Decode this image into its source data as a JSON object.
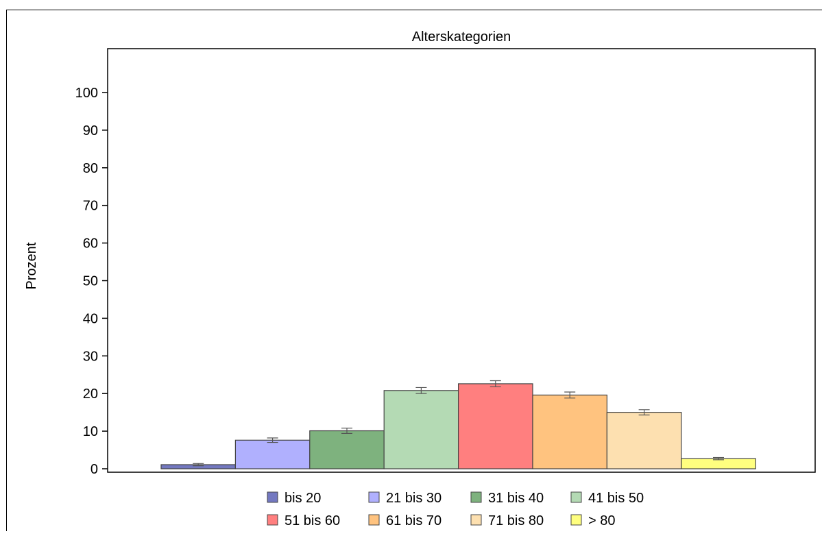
{
  "chart_data": {
    "type": "bar",
    "title": "Alterskategorien",
    "ylabel": "Prozent",
    "xlabel": "",
    "ylim": [
      0,
      110
    ],
    "yticks": [
      0,
      10,
      20,
      30,
      40,
      50,
      60,
      70,
      80,
      90,
      100
    ],
    "grid": false,
    "legend": "bottom",
    "series": [
      {
        "name": "bis 20",
        "value": 1.1,
        "err": 0.3,
        "color": "#7378C0"
      },
      {
        "name": "21 bis 30",
        "value": 7.6,
        "err": 0.6,
        "color": "#B0B0FE"
      },
      {
        "name": "31 bis 40",
        "value": 10.1,
        "err": 0.7,
        "color": "#7EB27E"
      },
      {
        "name": "41 bis 50",
        "value": 20.8,
        "err": 0.8,
        "color": "#B4DAB4"
      },
      {
        "name": "51 bis 60",
        "value": 22.6,
        "err": 0.8,
        "color": "#FF7F7F"
      },
      {
        "name": "61 bis 70",
        "value": 19.6,
        "err": 0.8,
        "color": "#FFC37F"
      },
      {
        "name": "71 bis 80",
        "value": 15.0,
        "err": 0.7,
        "color": "#FDE0B0"
      },
      {
        "name": "> 80",
        "value": 2.7,
        "err": 0.3,
        "color": "#FFFF7F"
      }
    ]
  }
}
